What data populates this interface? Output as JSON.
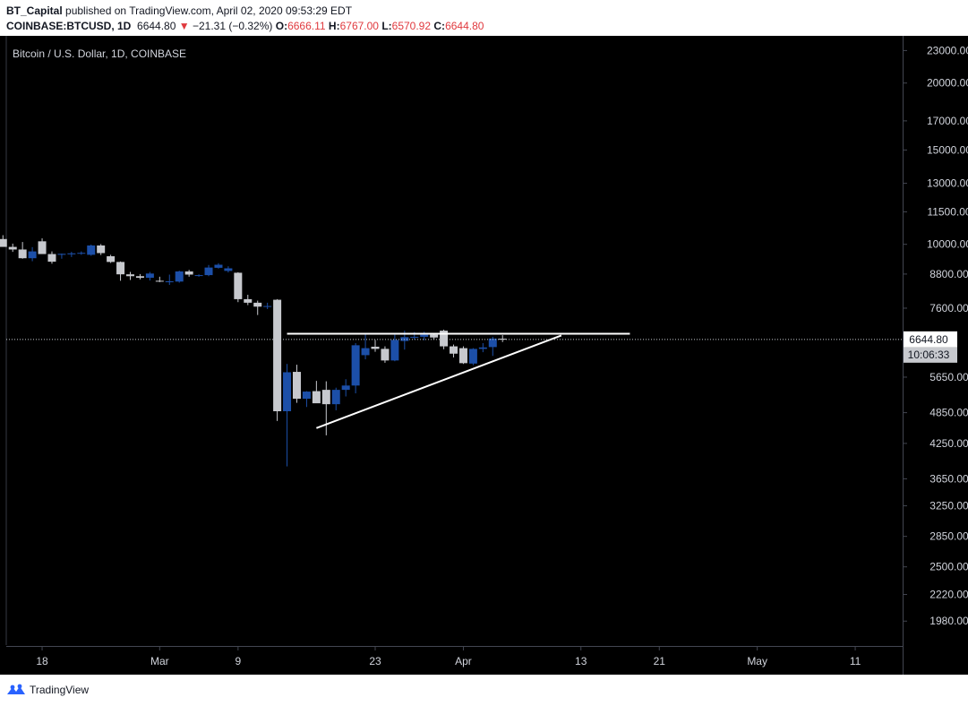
{
  "header": {
    "author": "BT_Capital",
    "published_text": "published on TradingView.com, April 02, 2020 09:53:29 EDT",
    "symbol": "COINBASE:BTCUSD, 1D",
    "last": "6644.80",
    "change_arrow": "▼",
    "change": "−21.31 (−0.32%)",
    "o_label": "O:",
    "o": "6666.11",
    "h_label": "H:",
    "h": "6767.00",
    "l_label": "L:",
    "l": "6570.92",
    "c_label": "C:",
    "c": "6644.80"
  },
  "footer": {
    "brand": "TradingView",
    "logo_icon": "tradingview-logo-icon"
  },
  "colors": {
    "background": "#000000",
    "up_candle": "#1c4fa8",
    "down_candle": "#c7c9ce",
    "drawing_lines": "#ffffff",
    "price_change_red": "#e0393e"
  },
  "chart_data": {
    "type": "candlestick",
    "title": "Bitcoin / U.S. Dollar, 1D, COINBASE",
    "y_scale": "log",
    "ylim": [
      1800,
      24500
    ],
    "y_ticks": [
      "23000.00",
      "20000.00",
      "17000.00",
      "15000.00",
      "13000.00",
      "11500.00",
      "10000.00",
      "8800.00",
      "7600.00",
      "5650.00",
      "4850.00",
      "4250.00",
      "3650.00",
      "3250.00",
      "2850.00",
      "2500.00",
      "2220.00",
      "1980.00"
    ],
    "x_ticks": [
      {
        "label": "18",
        "date": "2020-02-18"
      },
      {
        "label": "Mar",
        "date": "2020-03-01"
      },
      {
        "label": "9",
        "date": "2020-03-09"
      },
      {
        "label": "23",
        "date": "2020-03-23"
      },
      {
        "label": "Apr",
        "date": "2020-04-01"
      },
      {
        "label": "13",
        "date": "2020-04-13"
      },
      {
        "label": "21",
        "date": "2020-04-21"
      },
      {
        "label": "May",
        "date": "2020-05-01"
      },
      {
        "label": "11",
        "date": "2020-05-11"
      }
    ],
    "last_price": {
      "value": "6644.80",
      "countdown": "10:06:33"
    },
    "candles": [
      {
        "d": "2020-02-14",
        "o": 10230,
        "h": 10400,
        "l": 9900,
        "c": 9890
      },
      {
        "d": "2020-02-15",
        "o": 9890,
        "h": 10030,
        "l": 9680,
        "c": 9780
      },
      {
        "d": "2020-02-16",
        "o": 9780,
        "h": 10100,
        "l": 9400,
        "c": 9420
      },
      {
        "d": "2020-02-17",
        "o": 9420,
        "h": 9880,
        "l": 9300,
        "c": 9700
      },
      {
        "d": "2020-02-18",
        "o": 10130,
        "h": 10260,
        "l": 9600,
        "c": 9590
      },
      {
        "d": "2020-02-19",
        "o": 9590,
        "h": 9700,
        "l": 9200,
        "c": 9280
      },
      {
        "d": "2020-02-20",
        "o": 9560,
        "h": 9610,
        "l": 9400,
        "c": 9600
      },
      {
        "d": "2020-02-21",
        "o": 9580,
        "h": 9680,
        "l": 9470,
        "c": 9620
      },
      {
        "d": "2020-02-22",
        "o": 9620,
        "h": 9700,
        "l": 9560,
        "c": 9640
      },
      {
        "d": "2020-02-23",
        "o": 9560,
        "h": 9990,
        "l": 9520,
        "c": 9950
      },
      {
        "d": "2020-02-24",
        "o": 9950,
        "h": 10010,
        "l": 9550,
        "c": 9630
      },
      {
        "d": "2020-02-25",
        "o": 9500,
        "h": 9560,
        "l": 9230,
        "c": 9270
      },
      {
        "d": "2020-02-26",
        "o": 9270,
        "h": 9290,
        "l": 8550,
        "c": 8790
      },
      {
        "d": "2020-02-27",
        "o": 8790,
        "h": 8880,
        "l": 8580,
        "c": 8720
      },
      {
        "d": "2020-02-28",
        "o": 8720,
        "h": 8800,
        "l": 8600,
        "c": 8660
      },
      {
        "d": "2020-02-29",
        "o": 8660,
        "h": 8880,
        "l": 8560,
        "c": 8820
      },
      {
        "d": "2020-03-01",
        "o": 8550,
        "h": 8700,
        "l": 8500,
        "c": 8520
      },
      {
        "d": "2020-03-02",
        "o": 8520,
        "h": 8780,
        "l": 8400,
        "c": 8530
      },
      {
        "d": "2020-03-03",
        "o": 8520,
        "h": 8930,
        "l": 8480,
        "c": 8900
      },
      {
        "d": "2020-03-04",
        "o": 8900,
        "h": 8960,
        "l": 8700,
        "c": 8780
      },
      {
        "d": "2020-03-05",
        "o": 8760,
        "h": 8790,
        "l": 8700,
        "c": 8760
      },
      {
        "d": "2020-03-06",
        "o": 8760,
        "h": 9150,
        "l": 8720,
        "c": 9050
      },
      {
        "d": "2020-03-07",
        "o": 9040,
        "h": 9220,
        "l": 9010,
        "c": 9160
      },
      {
        "d": "2020-03-08",
        "o": 8920,
        "h": 9100,
        "l": 8860,
        "c": 9020
      },
      {
        "d": "2020-03-09",
        "o": 8850,
        "h": 8870,
        "l": 7800,
        "c": 7900
      },
      {
        "d": "2020-03-10",
        "o": 7900,
        "h": 8050,
        "l": 7700,
        "c": 7780
      },
      {
        "d": "2020-03-11",
        "o": 7780,
        "h": 7850,
        "l": 7380,
        "c": 7650
      },
      {
        "d": "2020-03-12",
        "o": 7660,
        "h": 7780,
        "l": 7570,
        "c": 7670
      },
      {
        "d": "2020-03-13",
        "o": 7880,
        "h": 7900,
        "l": 4680,
        "c": 4880
      },
      {
        "d": "2020-03-14",
        "o": 4880,
        "h": 5980,
        "l": 3850,
        "c": 5770
      },
      {
        "d": "2020-03-15",
        "o": 5780,
        "h": 5960,
        "l": 5060,
        "c": 5150
      },
      {
        "d": "2020-03-16",
        "o": 5150,
        "h": 5320,
        "l": 4970,
        "c": 5310
      },
      {
        "d": "2020-03-17",
        "o": 5320,
        "h": 5560,
        "l": 5100,
        "c": 5050
      },
      {
        "d": "2020-03-18",
        "o": 5350,
        "h": 5550,
        "l": 4400,
        "c": 5030
      },
      {
        "d": "2020-03-19",
        "o": 5030,
        "h": 5400,
        "l": 4900,
        "c": 5350
      },
      {
        "d": "2020-03-20",
        "o": 5350,
        "h": 5600,
        "l": 5200,
        "c": 5450
      },
      {
        "d": "2020-03-21",
        "o": 5450,
        "h": 6540,
        "l": 5270,
        "c": 6480
      },
      {
        "d": "2020-03-22",
        "o": 6210,
        "h": 6790,
        "l": 6100,
        "c": 6400
      },
      {
        "d": "2020-03-23",
        "o": 6440,
        "h": 6630,
        "l": 6300,
        "c": 6380
      },
      {
        "d": "2020-03-24",
        "o": 6380,
        "h": 6450,
        "l": 6010,
        "c": 6070
      },
      {
        "d": "2020-03-25",
        "o": 6070,
        "h": 6780,
        "l": 6050,
        "c": 6630
      },
      {
        "d": "2020-03-26",
        "o": 6600,
        "h": 6900,
        "l": 6360,
        "c": 6710
      },
      {
        "d": "2020-03-27",
        "o": 6700,
        "h": 6860,
        "l": 6640,
        "c": 6720
      },
      {
        "d": "2020-03-28",
        "o": 6720,
        "h": 6870,
        "l": 6620,
        "c": 6780
      },
      {
        "d": "2020-03-29",
        "o": 6780,
        "h": 6800,
        "l": 6640,
        "c": 6700
      },
      {
        "d": "2020-03-30",
        "o": 6900,
        "h": 6930,
        "l": 6370,
        "c": 6450
      },
      {
        "d": "2020-03-31",
        "o": 6450,
        "h": 6500,
        "l": 6150,
        "c": 6250
      },
      {
        "d": "2020-04-01",
        "o": 6400,
        "h": 6450,
        "l": 5980,
        "c": 6000
      },
      {
        "d": "2020-04-02",
        "o": 5990,
        "h": 6400,
        "l": 5950,
        "c": 6380
      },
      {
        "d": "2020-04-03",
        "o": 6380,
        "h": 6540,
        "l": 6290,
        "c": 6420
      },
      {
        "d": "2020-04-04",
        "o": 6430,
        "h": 6720,
        "l": 6190,
        "c": 6670
      },
      {
        "d": "2020-04-05",
        "o": 6666.11,
        "h": 6767.0,
        "l": 6570.92,
        "c": 6644.8
      }
    ],
    "drawings": [
      {
        "type": "horizontal-resistance",
        "from": {
          "date": "2020-03-14",
          "price": 6810
        },
        "to": {
          "date": "2020-04-18",
          "price": 6810
        }
      },
      {
        "type": "ascending-trendline",
        "from": {
          "date": "2020-03-17",
          "price": 4540
        },
        "to": {
          "date": "2020-04-11",
          "price": 6760
        }
      }
    ]
  }
}
